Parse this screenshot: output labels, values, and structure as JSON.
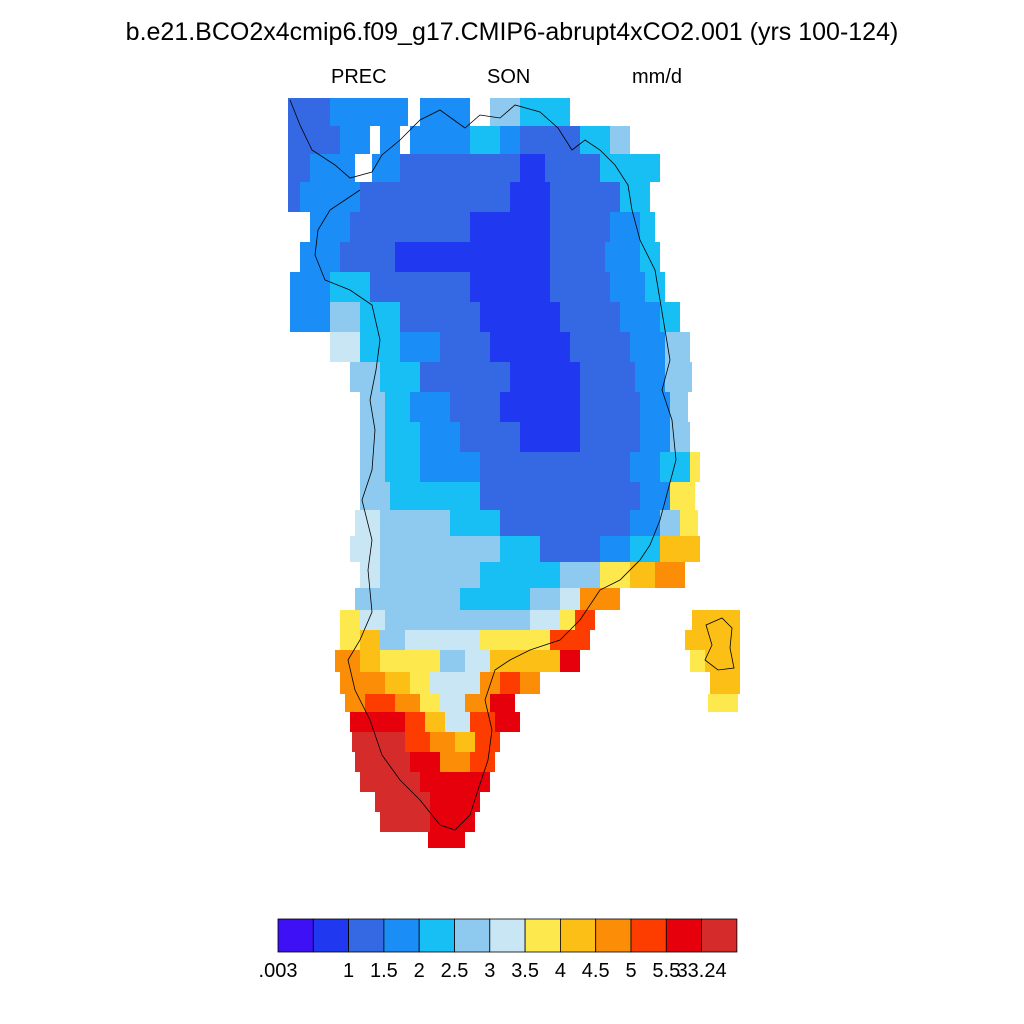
{
  "title": "b.e21.BCO2x4cmip6.f09_g17.CMIP6-abrupt4xCO2.001 (yrs 100-124)",
  "subtitle": {
    "variable": "PREC",
    "season": "SON",
    "units": "mm/d"
  },
  "colorbar": {
    "colors": [
      "#3d10f5",
      "#1f38f0",
      "#3568e3",
      "#1a8ef6",
      "#18bff5",
      "#8ec9ef",
      "#c9e6f5",
      "#fde84d",
      "#fbbf16",
      "#fc8d07",
      "#fd3d00",
      "#e6000b",
      "#d62b2b"
    ],
    "labels": [
      ".003",
      "1",
      "1.5",
      "2",
      "2.5",
      "3",
      "3.5",
      "4",
      "4.5",
      "5",
      "5.5",
      "33.24"
    ]
  }
}
